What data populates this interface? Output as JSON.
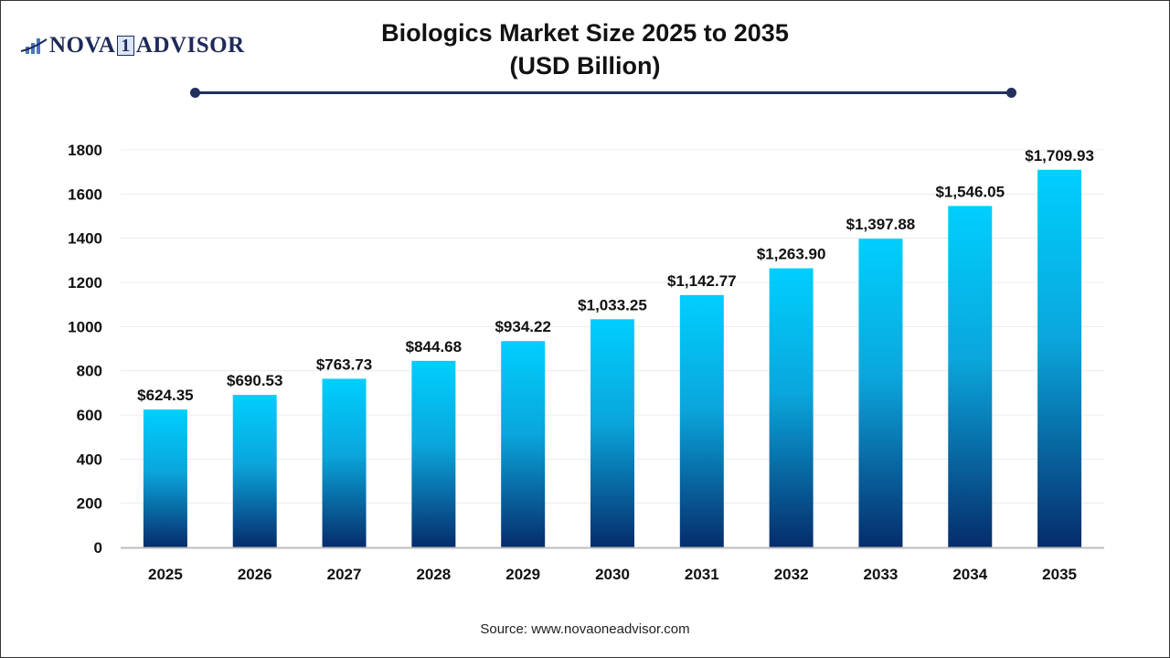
{
  "logo": {
    "text_left": "NOVA",
    "text_one": "1",
    "text_right": "ADVISOR"
  },
  "title_line1": "Biologics Market Size 2025 to 2035",
  "title_line2": "(USD Billion)",
  "source": "Source: www.novaoneadvisor.com",
  "colors": {
    "bar_top": "#00cfff",
    "bar_bottom": "#062c6b",
    "title_rule": "#23305e"
  },
  "chart_data": {
    "type": "bar",
    "title": "Biologics Market Size 2025 to 2035 (USD Billion)",
    "categories": [
      "2025",
      "2026",
      "2027",
      "2028",
      "2029",
      "2030",
      "2031",
      "2032",
      "2033",
      "2034",
      "2035"
    ],
    "values": [
      624.35,
      690.53,
      763.73,
      844.68,
      934.22,
      1033.25,
      1142.77,
      1263.9,
      1397.88,
      1546.05,
      1709.93
    ],
    "data_labels": [
      "$624.35",
      "$690.53",
      "$763.73",
      "$844.68",
      "$934.22",
      "$1,033.25",
      "$1,142.77",
      "$1,263.90",
      "$1,397.88",
      "$1,546.05",
      "$1,709.93"
    ],
    "yticks": [
      0,
      200,
      400,
      600,
      800,
      1000,
      1200,
      1400,
      1600,
      1800
    ],
    "ylim": [
      0,
      1800
    ],
    "grid": true,
    "xlabel": "",
    "ylabel": ""
  }
}
